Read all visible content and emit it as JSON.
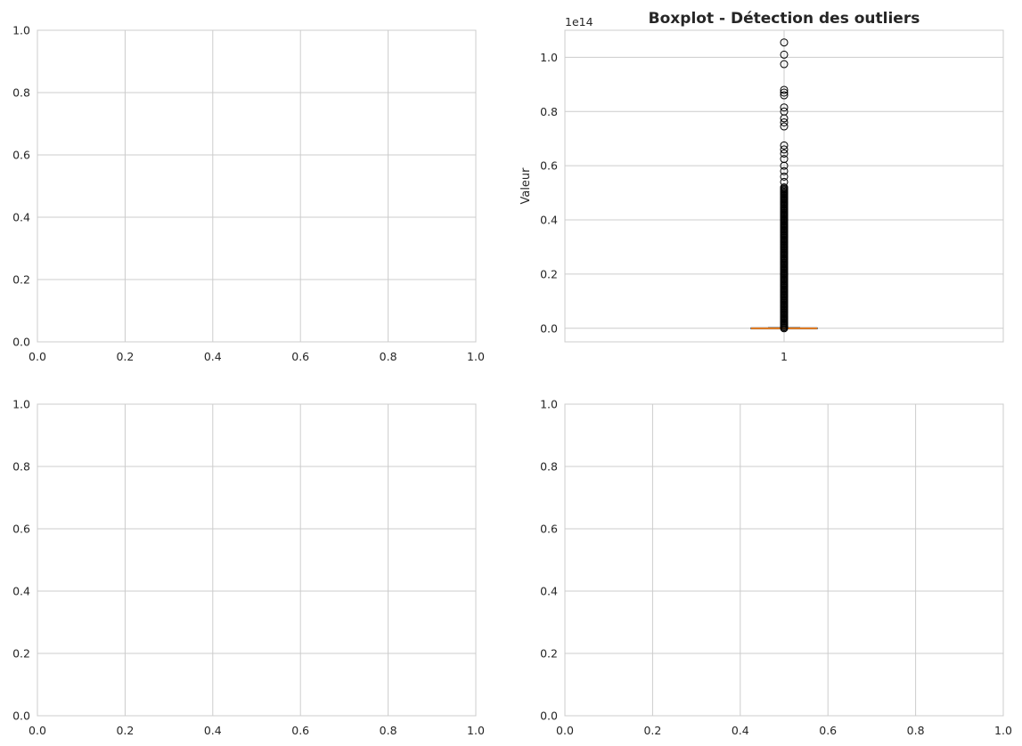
{
  "figure": {
    "background": "#ffffff",
    "grid_color": "#cccccc",
    "spine_color": "#cccccc",
    "text_color": "#262626"
  },
  "chart_data": [
    {
      "position": "top-left",
      "type": "scatter",
      "empty": true,
      "title": "",
      "xlabel": "",
      "ylabel": "",
      "xlim": [
        0,
        1
      ],
      "ylim": [
        0,
        1
      ],
      "xticks": [
        "0.0",
        "0.2",
        "0.4",
        "0.6",
        "0.8",
        "1.0"
      ],
      "yticks": [
        "0.0",
        "0.2",
        "0.4",
        "0.6",
        "0.8",
        "1.0"
      ],
      "grid": true
    },
    {
      "position": "top-right",
      "type": "boxplot",
      "title": "Boxplot - Détection des outliers",
      "xlabel": "",
      "ylabel": "Valeur",
      "offset_text": "1e14",
      "ylim": [
        -0.05,
        1.1
      ],
      "yticks": [
        "0.0",
        "0.2",
        "0.4",
        "0.6",
        "0.8",
        "1.0"
      ],
      "xticks": [
        "1"
      ],
      "grid": true,
      "median_color": "#ff7f0e",
      "box": {
        "category": "1",
        "q1": 0.0,
        "median": 0.0,
        "q3": 0.0,
        "whisker_low": 0.0,
        "whisker_high": 0.002
      },
      "outliers": [
        1.055,
        1.01,
        0.975,
        0.88,
        0.87,
        0.86,
        0.815,
        0.8,
        0.775,
        0.76,
        0.745,
        0.675,
        0.66,
        0.645,
        0.625,
        0.6,
        0.58,
        0.56,
        0.54,
        0.52,
        0.5,
        0.48,
        0.46,
        0.44,
        0.42,
        0.4,
        0.38,
        0.36,
        0.34,
        0.32,
        0.3,
        0.28,
        0.26,
        0.24,
        0.22,
        0.2,
        0.18,
        0.16,
        0.14,
        0.12,
        0.1,
        0.08,
        0.06,
        0.04,
        0.02
      ],
      "outlier_note": "dense column of outliers from about 0.0 up to about 0.5 (×1e14)"
    },
    {
      "position": "bottom-left",
      "type": "scatter",
      "empty": true,
      "title": "",
      "xlabel": "",
      "ylabel": "",
      "xlim": [
        0,
        1
      ],
      "ylim": [
        0,
        1
      ],
      "xticks": [
        "0.0",
        "0.2",
        "0.4",
        "0.6",
        "0.8",
        "1.0"
      ],
      "yticks": [
        "0.0",
        "0.2",
        "0.4",
        "0.6",
        "0.8",
        "1.0"
      ],
      "grid": true
    },
    {
      "position": "bottom-right",
      "type": "scatter",
      "empty": true,
      "title": "",
      "xlabel": "",
      "ylabel": "",
      "xlim": [
        0,
        1
      ],
      "ylim": [
        0,
        1
      ],
      "xticks": [
        "0.0",
        "0.2",
        "0.4",
        "0.6",
        "0.8",
        "1.0"
      ],
      "yticks": [
        "0.0",
        "0.2",
        "0.4",
        "0.6",
        "0.8",
        "1.0"
      ],
      "grid": true
    }
  ]
}
